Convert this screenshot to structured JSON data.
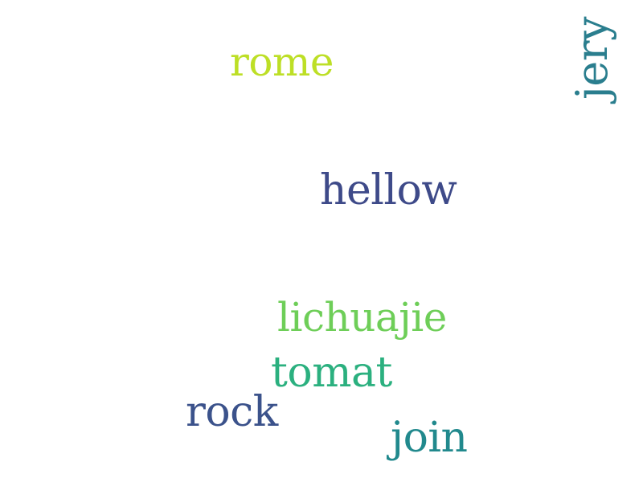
{
  "words": [
    {
      "id": "rome",
      "text": "rome",
      "color": "#bddf26",
      "orientation": "horizontal"
    },
    {
      "id": "hellow",
      "text": "hellow",
      "color": "#3e4a89",
      "orientation": "horizontal"
    },
    {
      "id": "lichuajie",
      "text": "lichuajie",
      "color": "#6ece58",
      "orientation": "horizontal"
    },
    {
      "id": "tomat",
      "text": "tomat",
      "color": "#2bb07f",
      "orientation": "horizontal"
    },
    {
      "id": "rock",
      "text": "rock",
      "color": "#3b528b",
      "orientation": "horizontal"
    },
    {
      "id": "join",
      "text": "join",
      "color": "#21898d",
      "orientation": "horizontal"
    },
    {
      "id": "jery",
      "text": "jery",
      "color": "#2a7e8e",
      "orientation": "vertical"
    }
  ]
}
